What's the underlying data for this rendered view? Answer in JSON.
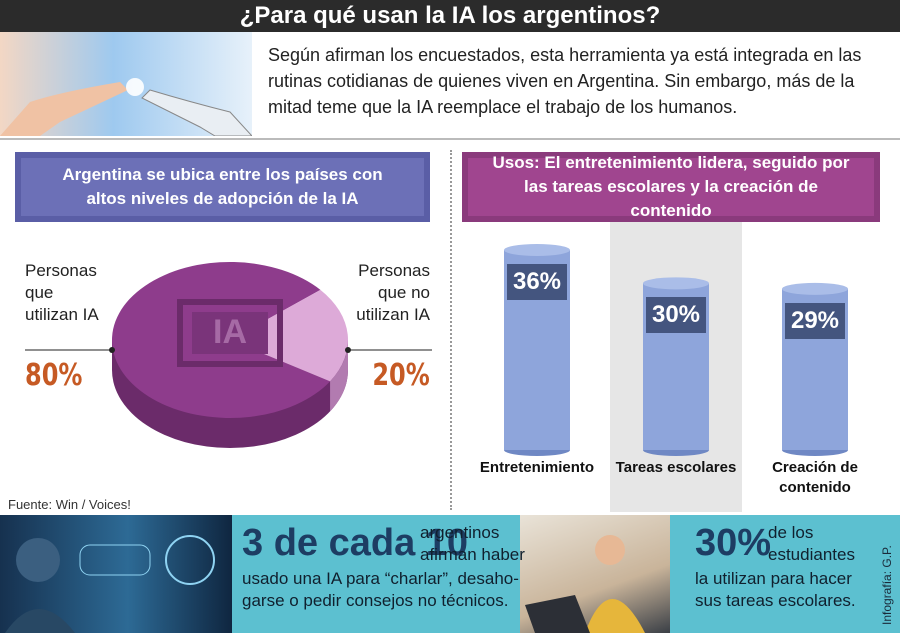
{
  "header": {
    "title": "¿Para qué usan la IA los argentinos?"
  },
  "intro": {
    "lines": [
      "Según afirman los encuestados, esta herramienta ya está integrada en las",
      "rutinas cotidianas de quienes viven en Argentina. Sin embargo, más de la",
      "mitad teme que la IA reemplace el trabajo de los humanos."
    ]
  },
  "chart_data": [
    {
      "type": "pie",
      "title": "Argentina se ubica entre los países con altos niveles de adopción de la IA",
      "annotation": "IA",
      "categories": [
        "Personas que utilizan IA",
        "Personas que no utilizan IA"
      ],
      "values": [
        80,
        20
      ],
      "value_labels": [
        "80%",
        "20%"
      ],
      "colors": [
        "#8e3c8c",
        "#ddaad8"
      ]
    },
    {
      "type": "bar",
      "title": "Usos: El entretenimiento lidera, seguido por las tareas escolares y la creación de contenido",
      "categories": [
        "Entretenimiento",
        "Tareas escolares",
        "Creación de contenido"
      ],
      "values": [
        36,
        30,
        29
      ],
      "value_labels": [
        "36%",
        "30%",
        "29%"
      ],
      "color": "#8ea5db",
      "highlight": 1
    }
  ],
  "source": "Fuente: Win / Voices!",
  "callouts": [
    {
      "highlight": "3 de cada 10",
      "lines": [
        "argentinos",
        "afirman haber",
        "usado una IA para “charlar”, desaho-",
        "garse o pedir consejos no técnicos."
      ]
    },
    {
      "highlight": "30%",
      "lines": [
        "de los",
        "estudiantes",
        "la utilizan para hacer",
        "sus tareas escolares."
      ]
    }
  ],
  "credit": "Infografía: G.P."
}
